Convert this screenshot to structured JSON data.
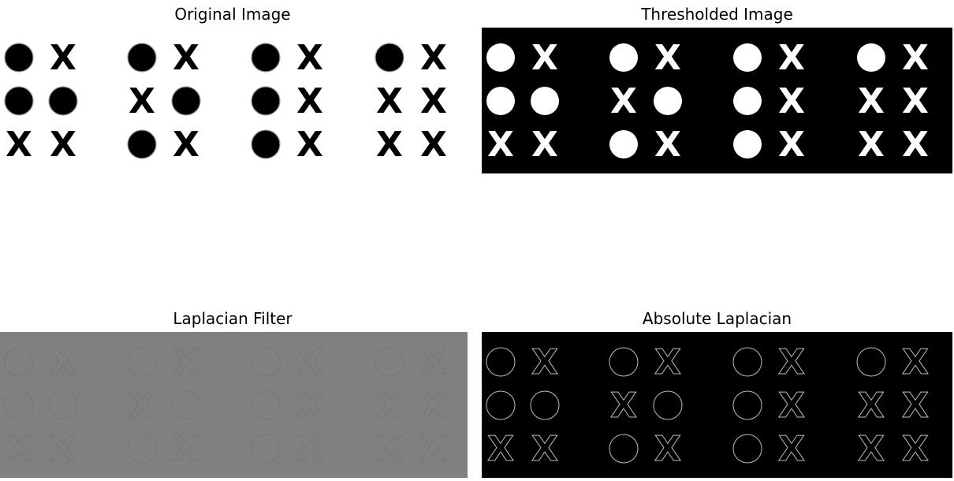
{
  "panels": [
    {
      "title": "Original Image",
      "style": "original"
    },
    {
      "title": "Thresholded Image",
      "style": "threshold"
    },
    {
      "title": "Laplacian Filter",
      "style": "laplacian"
    },
    {
      "title": "Absolute Laplacian",
      "style": "abs_laplacian"
    }
  ],
  "groups": [
    {
      "rows": [
        [
          "O",
          "X"
        ],
        [
          "O",
          "O"
        ],
        [
          "X",
          "X"
        ]
      ]
    },
    {
      "rows": [
        [
          "O",
          "X"
        ],
        [
          "X",
          "O"
        ],
        [
          "O",
          "X"
        ]
      ]
    },
    {
      "rows": [
        [
          "O",
          "X"
        ],
        [
          "O",
          "X"
        ],
        [
          "O",
          "X"
        ]
      ]
    },
    {
      "rows": [
        [
          "O",
          "X"
        ],
        [
          "X",
          "X"
        ],
        [
          "X",
          "X"
        ]
      ]
    }
  ],
  "colors": {
    "original_bg": "#ffffff",
    "original_fg": "#000000",
    "threshold_bg": "#000000",
    "threshold_fg": "#ffffff",
    "laplacian_bg": "#808080",
    "laplacian_edge": "#787878",
    "abs_bg": "#000000",
    "abs_edge": "#bdbdbd"
  }
}
